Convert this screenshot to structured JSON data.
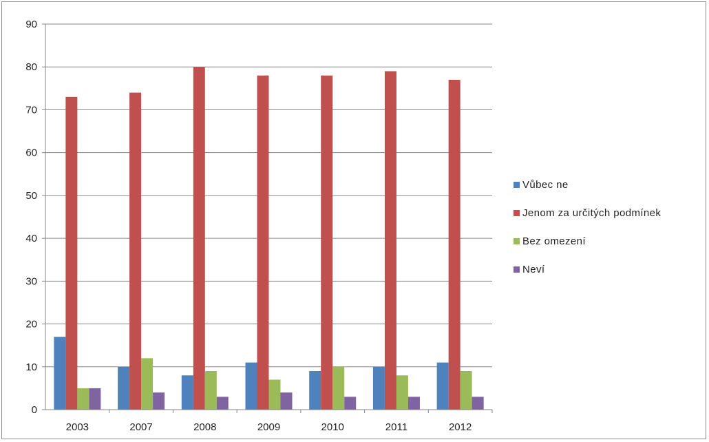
{
  "chart_data": {
    "type": "bar",
    "categories": [
      "2003",
      "2007",
      "2008",
      "2009",
      "2010",
      "2011",
      "2012"
    ],
    "series": [
      {
        "name": "Vůbec ne",
        "color": "#4F81BD",
        "values": [
          17,
          10,
          8,
          11,
          9,
          10,
          11
        ]
      },
      {
        "name": "Jenom za určitých podmínek",
        "color": "#C0504D",
        "values": [
          73,
          74,
          80,
          78,
          78,
          79,
          77
        ]
      },
      {
        "name": "Bez omezení",
        "color": "#9BBB59",
        "values": [
          5,
          12,
          9,
          7,
          10,
          8,
          9
        ]
      },
      {
        "name": "Neví",
        "color": "#8064A2",
        "values": [
          5,
          4,
          3,
          4,
          3,
          3,
          3
        ]
      }
    ],
    "ylim": [
      0,
      90
    ],
    "yticks": [
      0,
      10,
      20,
      30,
      40,
      50,
      60,
      70,
      80,
      90
    ],
    "grid": true,
    "legend_position": "right"
  }
}
